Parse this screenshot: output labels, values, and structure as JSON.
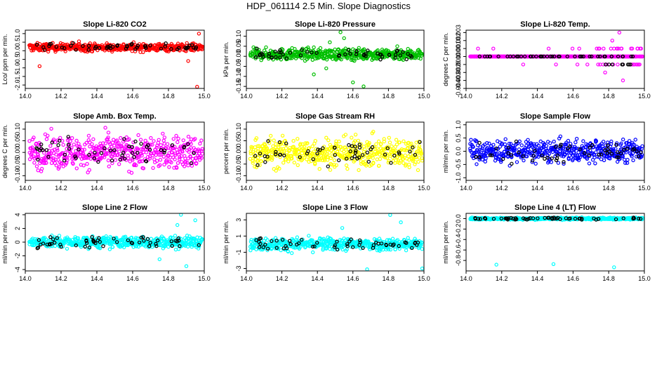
{
  "title": "HDP_061114  2.5 Min. Slope Diagnostics",
  "colors": {
    "red": "#ff0000",
    "green": "#00bf00",
    "magenta": "#ff00ff",
    "yellow": "#ffff00",
    "blue": "#0000ff",
    "cyan": "#00ffff",
    "black": "#000000"
  },
  "chart_data": [
    {
      "type": "scatter",
      "title": "Slope Li-820 CO2",
      "ylabel": "Lco/ ppm per min.",
      "xlim": [
        14.0,
        15.0
      ],
      "xticks": [
        "14.0",
        "14.2",
        "14.4",
        "14.6",
        "14.8",
        "15.0"
      ],
      "ylim": [
        -2.2,
        1.2
      ],
      "yticks": [
        1.0,
        0.5,
        0.0,
        -0.5,
        -1.0,
        -1.5,
        -2.0
      ],
      "ytick_labels": [
        "1.0",
        "0.5",
        "0.0",
        "-0.5",
        "-1.0",
        "-1.5",
        "-2.0"
      ],
      "color": "red",
      "center": 0.2,
      "spread": 0.16,
      "outliers": [
        [
          14.08,
          -0.9
        ],
        [
          14.96,
          -2.1
        ],
        [
          14.97,
          1.0
        ],
        [
          14.91,
          -0.6
        ],
        [
          14.3,
          0.55
        ]
      ]
    },
    {
      "type": "scatter",
      "title": "Slope Li-820 Pressure",
      "ylabel": "kPa per min.",
      "xlim": [
        14.0,
        15.0
      ],
      "xticks": [
        "14.0",
        "14.2",
        "14.4",
        "14.6",
        "14.8",
        "15.0"
      ],
      "ylim": [
        -0.16,
        0.13
      ],
      "yticks": [
        0.1,
        0.05,
        0.0,
        -0.05,
        -0.1,
        -0.15
      ],
      "ytick_labels": [
        "0.10",
        "0.05",
        "0.00",
        "-0.05",
        "-0.10",
        "-0.15"
      ],
      "color": "green",
      "center": 0.01,
      "spread": 0.02,
      "outliers": [
        [
          14.53,
          0.12
        ],
        [
          14.55,
          0.09
        ],
        [
          14.66,
          -0.15
        ],
        [
          14.6,
          -0.13
        ],
        [
          14.38,
          -0.09
        ],
        [
          14.45,
          -0.06
        ],
        [
          14.47,
          0.07
        ],
        [
          14.85,
          0.05
        ]
      ]
    },
    {
      "type": "scatter",
      "title": "Slope Li-820 Temp.",
      "ylabel": "degrees C per min.",
      "xlim": [
        14.0,
        15.0
      ],
      "xticks": [
        "14.0",
        "14.2",
        "14.4",
        "14.6",
        "14.8",
        "15.0"
      ],
      "ylim": [
        -0.004,
        0.0033
      ],
      "yticks": [
        0.003,
        0.002,
        0.001,
        0.0,
        -0.001,
        -0.002,
        -0.003,
        -0.004
      ],
      "ytick_labels": [
        "0.003",
        "0.002",
        "0.001",
        "0.000",
        "-0.001",
        "-0.002",
        "-0.003",
        "-0.004"
      ],
      "color": "magenta",
      "center": 0.0,
      "spread": 0.0,
      "discrete": true,
      "outliers": [
        [
          14.86,
          0.003
        ],
        [
          14.88,
          -0.003
        ],
        [
          14.82,
          0.002
        ],
        [
          14.78,
          -0.002
        ]
      ]
    },
    {
      "type": "scatter",
      "title": "Slope Amb. Box Temp.",
      "ylabel": "degrees C per min.",
      "xlim": [
        14.0,
        15.0
      ],
      "xticks": [
        "14.0",
        "14.2",
        "14.4",
        "14.6",
        "14.8",
        "15.0"
      ],
      "ylim": [
        -0.12,
        0.13
      ],
      "yticks": [
        0.1,
        0.05,
        0.0,
        -0.05,
        -0.1
      ],
      "ytick_labels": [
        "0.10",
        "0.05",
        "0.00",
        "-0.05",
        "-0.10"
      ],
      "color": "magenta",
      "center": 0.0,
      "spread": 0.05,
      "outliers": []
    },
    {
      "type": "scatter",
      "title": "Slope Gas Stream RH",
      "ylabel": "percent per min.",
      "xlim": [
        14.0,
        15.0
      ],
      "xticks": [
        "14.0",
        "14.2",
        "14.4",
        "14.6",
        "14.8",
        "15.0"
      ],
      "ylim": [
        -0.12,
        0.13
      ],
      "yticks": [
        0.1,
        0.05,
        0.0,
        -0.05,
        -0.1
      ],
      "ytick_labels": [
        "0.10",
        "0.05",
        "0.00",
        "-0.05",
        "-0.10"
      ],
      "color": "yellow",
      "center": 0.0,
      "spread": 0.045,
      "outliers": []
    },
    {
      "type": "scatter",
      "title": "Slope Sample Flow",
      "ylabel": "ml/min per min.",
      "xlim": [
        14.0,
        15.0
      ],
      "xticks": [
        "14.0",
        "14.2",
        "14.4",
        "14.6",
        "14.8",
        "15.0"
      ],
      "ylim": [
        -1.1,
        1.1
      ],
      "yticks": [
        1.0,
        0.5,
        0.0,
        -0.5,
        -1.0
      ],
      "ytick_labels": [
        "1.0",
        "0.5",
        "0.0",
        "-0.5",
        "-1.0"
      ],
      "color": "blue",
      "center": 0.0,
      "spread": 0.3,
      "outliers": []
    },
    {
      "type": "scatter",
      "title": "Slope Line 2 Flow",
      "ylabel": "ml/min per min.",
      "xlim": [
        14.0,
        15.0
      ],
      "xticks": [
        "14.0",
        "14.2",
        "14.4",
        "14.6",
        "14.8",
        "15.0"
      ],
      "ylim": [
        -4.2,
        4.2
      ],
      "yticks": [
        4,
        2,
        0,
        -2,
        -4
      ],
      "ytick_labels": [
        "4",
        "2",
        "0",
        "-2",
        "-4"
      ],
      "color": "cyan",
      "center": 0.0,
      "spread": 0.6,
      "outliers": [
        [
          14.87,
          4.0
        ],
        [
          14.95,
          3.2
        ],
        [
          14.85,
          2.5
        ],
        [
          14.9,
          -3.5
        ],
        [
          14.75,
          -2.5
        ]
      ]
    },
    {
      "type": "scatter",
      "title": "Slope Line 3 Flow",
      "ylabel": "ml/min per min.",
      "xlim": [
        14.0,
        15.0
      ],
      "xticks": [
        "14.0",
        "14.2",
        "14.4",
        "14.6",
        "14.8",
        "15.0"
      ],
      "ylim": [
        -3.3,
        3.8
      ],
      "yticks": [
        3,
        1,
        -1,
        -3
      ],
      "ytick_labels": [
        "3",
        "1",
        "-1",
        "-3"
      ],
      "color": "cyan",
      "center": 0.0,
      "spread": 0.55,
      "outliers": [
        [
          14.81,
          3.6
        ],
        [
          14.87,
          2.7
        ],
        [
          14.99,
          -3.0
        ],
        [
          14.68,
          -3.1
        ],
        [
          14.54,
          2.0
        ]
      ]
    },
    {
      "type": "scatter",
      "title": "Slope Line 4 (LT) Flow",
      "ylabel": "ml/min per min.",
      "xlim": [
        14.0,
        15.0
      ],
      "xticks": [
        "14.0",
        "14.2",
        "14.4",
        "14.6",
        "14.8",
        "15.0"
      ],
      "ylim": [
        -1.0,
        0.1
      ],
      "yticks": [
        0.0,
        -0.2,
        -0.4,
        -0.6,
        -0.8
      ],
      "ytick_labels": [
        "0.0",
        "-0.2",
        "-0.4",
        "-0.6",
        "-0.8"
      ],
      "color": "cyan",
      "center": 0.0,
      "spread": 0.015,
      "outliers": [
        [
          14.17,
          -0.88
        ],
        [
          14.49,
          -0.87
        ],
        [
          14.83,
          -0.93
        ]
      ]
    }
  ]
}
